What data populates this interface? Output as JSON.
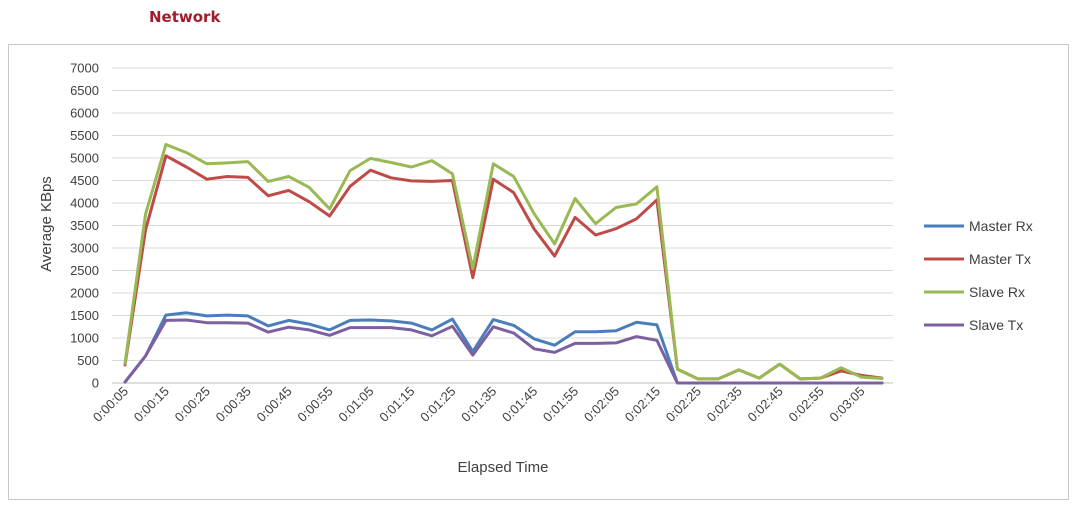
{
  "page": {
    "heading": "Network"
  },
  "chart_data": {
    "type": "line",
    "title": "",
    "xlabel": "Elapsed Time",
    "ylabel": "Average KBps",
    "ylim": [
      0,
      7000
    ],
    "y_ticks": [
      0,
      500,
      1000,
      1500,
      2000,
      2500,
      3000,
      3500,
      4000,
      4500,
      5000,
      5500,
      6000,
      6500,
      7000
    ],
    "grid": true,
    "legend_position": "right",
    "x": [
      "0:00:05",
      "0:00:10",
      "0:00:15",
      "0:00:20",
      "0:00:25",
      "0:00:30",
      "0:00:35",
      "0:00:40",
      "0:00:45",
      "0:00:50",
      "0:00:55",
      "0:01:00",
      "0:01:05",
      "0:01:10",
      "0:01:15",
      "0:01:20",
      "0:01:25",
      "0:01:30",
      "0:01:35",
      "0:01:40",
      "0:01:45",
      "0:01:50",
      "0:01:55",
      "0:02:00",
      "0:02:05",
      "0:02:10",
      "0:02:15",
      "0:02:20",
      "0:02:25",
      "0:02:30",
      "0:02:35",
      "0:02:40",
      "0:02:45",
      "0:02:50",
      "0:02:55",
      "0:03:00",
      "0:03:05",
      "0:03:10"
    ],
    "x_tick_labels": [
      "0:00:05",
      "0:00:15",
      "0:00:25",
      "0:00:35",
      "0:00:45",
      "0:00:55",
      "0:01:05",
      "0:01:15",
      "0:01:25",
      "0:01:35",
      "0:01:45",
      "0:01:55",
      "0:02:05",
      "0:02:15",
      "0:02:25",
      "0:02:35",
      "0:02:45",
      "0:02:55",
      "0:03:05"
    ],
    "series": [
      {
        "name": "Master Rx",
        "color": "#4a7ebb",
        "values": [
          20,
          600,
          1510,
          1560,
          1490,
          1510,
          1490,
          1270,
          1390,
          1310,
          1180,
          1390,
          1400,
          1380,
          1330,
          1180,
          1420,
          700,
          1410,
          1280,
          980,
          840,
          1140,
          1140,
          1160,
          1350,
          1290,
          0,
          0,
          0,
          0,
          0,
          0,
          0,
          0,
          0,
          0,
          0
        ]
      },
      {
        "name": "Master Tx",
        "color": "#be4b48",
        "values": [
          400,
          3400,
          5050,
          4800,
          4530,
          4590,
          4570,
          4160,
          4280,
          4030,
          3710,
          4370,
          4730,
          4560,
          4490,
          4480,
          4500,
          2340,
          4530,
          4230,
          3420,
          2820,
          3680,
          3290,
          3430,
          3650,
          4070,
          310,
          90,
          90,
          290,
          110,
          420,
          90,
          110,
          270,
          170,
          110
        ]
      },
      {
        "name": "Slave Rx",
        "color": "#98b954",
        "values": [
          430,
          3750,
          5300,
          5120,
          4870,
          4890,
          4920,
          4480,
          4590,
          4350,
          3870,
          4720,
          4990,
          4900,
          4800,
          4940,
          4650,
          2540,
          4870,
          4590,
          3760,
          3090,
          4100,
          3540,
          3900,
          3980,
          4360,
          310,
          90,
          90,
          290,
          110,
          420,
          90,
          110,
          340,
          130,
          100
        ]
      },
      {
        "name": "Slave Tx",
        "color": "#7d60a0",
        "values": [
          20,
          600,
          1390,
          1400,
          1340,
          1340,
          1330,
          1130,
          1240,
          1180,
          1060,
          1230,
          1230,
          1230,
          1180,
          1050,
          1260,
          620,
          1250,
          1110,
          760,
          680,
          880,
          880,
          890,
          1030,
          950,
          0,
          0,
          0,
          0,
          0,
          0,
          0,
          0,
          0,
          0,
          0
        ]
      }
    ]
  }
}
